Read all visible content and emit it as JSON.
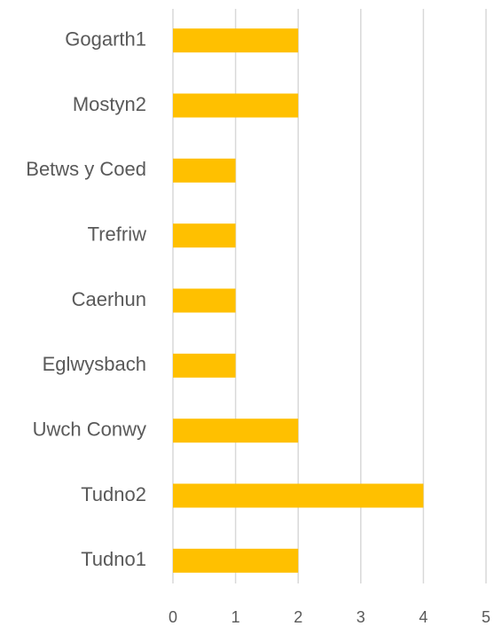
{
  "chart_data": {
    "type": "bar",
    "orientation": "horizontal",
    "categories": [
      "Gogarth1",
      "Mostyn2",
      "Betws y Coed",
      "Trefriw",
      "Caerhun",
      "Eglwysbach",
      "Uwch Conwy",
      "Tudno2",
      "Tudno1"
    ],
    "values": [
      2,
      2,
      1,
      1,
      1,
      1,
      2,
      4,
      2
    ],
    "color": "#ffc000",
    "xlim": [
      0,
      5
    ],
    "xticks": [
      0,
      1,
      2,
      3,
      4,
      5
    ],
    "grid": true
  }
}
